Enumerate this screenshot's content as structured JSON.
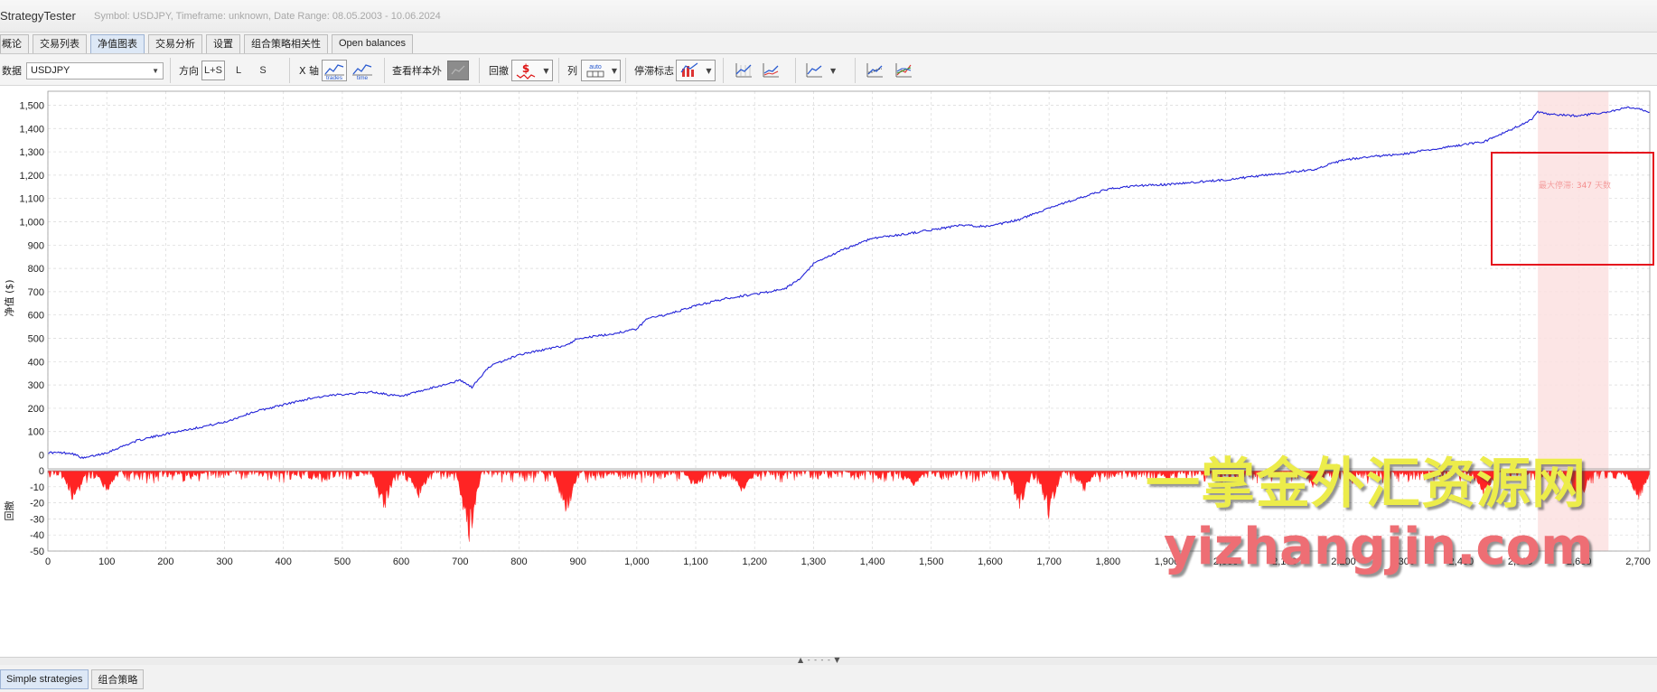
{
  "app": {
    "title": "StrategyTester",
    "subtitle": "Symbol: USDJPY, Timeframe: unknown, Date Range: 08.05.2003 - 10.06.2024"
  },
  "tabs": [
    {
      "label": "概论",
      "active": false
    },
    {
      "label": "交易列表",
      "active": false
    },
    {
      "label": "净值图表",
      "active": true
    },
    {
      "label": "交易分析",
      "active": false
    },
    {
      "label": "设置",
      "active": false
    },
    {
      "label": "组合策略相关性",
      "active": false
    },
    {
      "label": "Open balances",
      "active": false
    }
  ],
  "toolbar": {
    "data_label": "数据",
    "data_value": "USDJPY",
    "direction_label": "方向",
    "direction_options": [
      "L+S",
      "L",
      "S"
    ],
    "direction_selected": "L+S",
    "x_axis_label": "X 轴",
    "x_axis_trades": "trades",
    "x_axis_time": "time",
    "out_of_sample_label": "查看样本外",
    "drawdown_label": "回撤",
    "columns_label": "列",
    "columns_auto": "auto",
    "stagnation_label": "停滞标志"
  },
  "chart_data": [
    {
      "type": "line",
      "name": "equity",
      "ylabel": "净值 ($)",
      "xlim": [
        0,
        2720
      ],
      "ylim": [
        -60,
        1560
      ],
      "y_ticks": [
        "0",
        "100",
        "200",
        "300",
        "400",
        "500",
        "600",
        "700",
        "800",
        "900",
        "1,000",
        "1,100",
        "1,200",
        "1,300",
        "1,400",
        "1,500"
      ],
      "x": [
        0,
        40,
        60,
        100,
        150,
        200,
        250,
        300,
        350,
        400,
        450,
        500,
        550,
        600,
        650,
        700,
        720,
        750,
        800,
        850,
        880,
        900,
        950,
        1000,
        1020,
        1050,
        1100,
        1150,
        1200,
        1250,
        1280,
        1300,
        1350,
        1400,
        1450,
        1500,
        1550,
        1600,
        1650,
        1700,
        1750,
        1800,
        1850,
        1900,
        1950,
        2000,
        2050,
        2100,
        2150,
        2200,
        2250,
        2300,
        2350,
        2400,
        2440,
        2480,
        2520,
        2530,
        2550,
        2600,
        2650,
        2680,
        2700,
        2720
      ],
      "y": [
        10,
        8,
        -15,
        10,
        60,
        90,
        115,
        140,
        185,
        215,
        245,
        260,
        270,
        250,
        285,
        320,
        290,
        380,
        430,
        455,
        470,
        500,
        515,
        540,
        590,
        600,
        640,
        670,
        690,
        710,
        760,
        820,
        880,
        930,
        945,
        965,
        985,
        980,
        1010,
        1060,
        1100,
        1140,
        1155,
        1160,
        1170,
        1180,
        1195,
        1210,
        1225,
        1265,
        1280,
        1290,
        1310,
        1330,
        1345,
        1390,
        1440,
        1470,
        1460,
        1455,
        1470,
        1490,
        1485,
        1470
      ],
      "stagnation": {
        "label": "最大停滞:",
        "days": "347",
        "unit": "天数",
        "x_range": [
          2530,
          2650
        ]
      }
    },
    {
      "type": "area",
      "name": "drawdown",
      "ylabel": "回撤",
      "ylim": [
        -50,
        0
      ],
      "y_ticks": [
        "0",
        "-10",
        "-20",
        "-30",
        "-40",
        "-50"
      ],
      "x_ticks": [
        "0",
        "100",
        "200",
        "300",
        "400",
        "500",
        "600",
        "700",
        "800",
        "900",
        "1,000",
        "1,100",
        "1,200",
        "1,300",
        "1,400",
        "1,500",
        "1,600",
        "1,700",
        "1,800",
        "1,900",
        "2,000",
        "2,100",
        "2,200",
        "2,300",
        "2,400",
        "2,500",
        "2,600",
        "2,700"
      ],
      "major_dips": [
        [
          45,
          -23
        ],
        [
          100,
          -14
        ],
        [
          570,
          -28
        ],
        [
          630,
          -18
        ],
        [
          715,
          -48
        ],
        [
          880,
          -30
        ],
        [
          1100,
          -12
        ],
        [
          1180,
          -15
        ],
        [
          1470,
          -10
        ],
        [
          1650,
          -26
        ],
        [
          1700,
          -31
        ],
        [
          1760,
          -14
        ],
        [
          2150,
          -12
        ],
        [
          2440,
          -18
        ],
        [
          2600,
          -24
        ],
        [
          2700,
          -22
        ]
      ]
    }
  ],
  "watermark": {
    "cn": "一掌金外汇资源网",
    "en": "yizhangjin.com"
  },
  "bottom_tabs": [
    {
      "label": "Simple strategies",
      "active": true
    },
    {
      "label": "组合策略",
      "active": false
    }
  ],
  "colors": {
    "equity_line": "#2424d8",
    "drawdown_fill": "#ff2424",
    "stagnation_band": "#fbe0e0",
    "highlight_box": "#e5131e"
  }
}
